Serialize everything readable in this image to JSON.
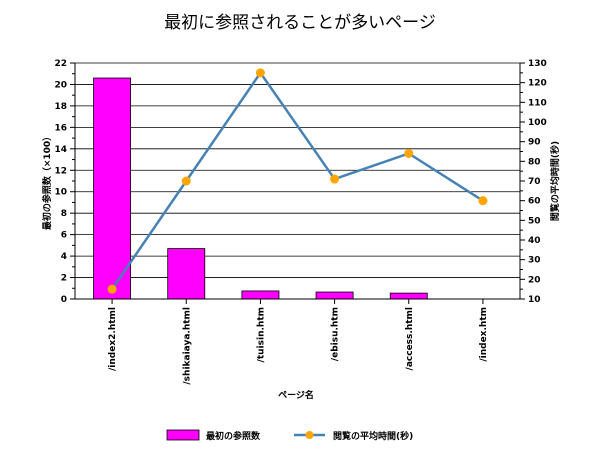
{
  "chart_data": {
    "type": "bar",
    "title": "最初に参照されることが多いページ",
    "xlabel": "ページ名",
    "ylabel_left": "最初の参照数（×100）",
    "ylabel_right": "閲覧の平均時間(秒)",
    "categories": [
      "/index2.html",
      "/shikaiaya.html",
      "/tuisin.htm",
      "/ebisu.htm",
      "/access.html",
      "/index.htm"
    ],
    "series": [
      {
        "name": "最初の参照数",
        "type": "bar",
        "axis": "left",
        "color": "#ff00ff",
        "values": [
          20.6,
          4.7,
          0.75,
          0.65,
          0.55,
          0
        ]
      },
      {
        "name": "閲覧の平均時間(秒)",
        "type": "line",
        "axis": "right",
        "color": "#4682b4",
        "marker_color": "#ffa500",
        "values": [
          15,
          70,
          125,
          71,
          84,
          60
        ]
      }
    ],
    "ylim_left": [
      0,
      22
    ],
    "ylim_right": [
      10,
      130
    ],
    "left_ticks": [
      "0",
      "2",
      "4",
      "6",
      "8",
      "10",
      "12",
      "14",
      "16",
      "18",
      "20",
      "22"
    ],
    "right_ticks": [
      "10",
      "20",
      "30",
      "40",
      "50",
      "60",
      "70",
      "80",
      "90",
      "100",
      "110",
      "120",
      "130"
    ],
    "grid": true,
    "legend_position": "bottom"
  }
}
